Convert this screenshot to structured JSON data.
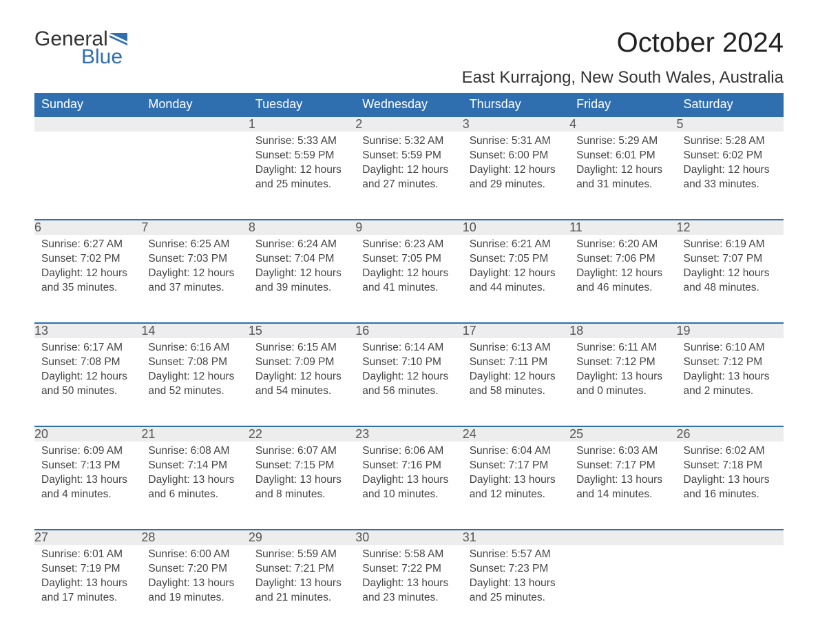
{
  "brand": {
    "part1": "General",
    "part2": "Blue",
    "part1_color": "#333333",
    "part2_color": "#2f6fb0"
  },
  "title": "October 2024",
  "location": "East Kurrajong, New South Wales, Australia",
  "colors": {
    "header_bg": "#2f6fb0",
    "header_text": "#ffffff",
    "daynum_bg": "#ededed",
    "row_border": "#2f6fb0",
    "body_text": "#444444",
    "background": "#ffffff"
  },
  "fonts": {
    "title_size": 40,
    "location_size": 24,
    "dayhead_size": 18,
    "cell_size": 15.5
  },
  "day_headers": [
    "Sunday",
    "Monday",
    "Tuesday",
    "Wednesday",
    "Thursday",
    "Friday",
    "Saturday"
  ],
  "weeks": [
    [
      null,
      null,
      {
        "n": "1",
        "sunrise": "5:33 AM",
        "sunset": "5:59 PM",
        "daylight": "12 hours and 25 minutes."
      },
      {
        "n": "2",
        "sunrise": "5:32 AM",
        "sunset": "5:59 PM",
        "daylight": "12 hours and 27 minutes."
      },
      {
        "n": "3",
        "sunrise": "5:31 AM",
        "sunset": "6:00 PM",
        "daylight": "12 hours and 29 minutes."
      },
      {
        "n": "4",
        "sunrise": "5:29 AM",
        "sunset": "6:01 PM",
        "daylight": "12 hours and 31 minutes."
      },
      {
        "n": "5",
        "sunrise": "5:28 AM",
        "sunset": "6:02 PM",
        "daylight": "12 hours and 33 minutes."
      }
    ],
    [
      {
        "n": "6",
        "sunrise": "6:27 AM",
        "sunset": "7:02 PM",
        "daylight": "12 hours and 35 minutes."
      },
      {
        "n": "7",
        "sunrise": "6:25 AM",
        "sunset": "7:03 PM",
        "daylight": "12 hours and 37 minutes."
      },
      {
        "n": "8",
        "sunrise": "6:24 AM",
        "sunset": "7:04 PM",
        "daylight": "12 hours and 39 minutes."
      },
      {
        "n": "9",
        "sunrise": "6:23 AM",
        "sunset": "7:05 PM",
        "daylight": "12 hours and 41 minutes."
      },
      {
        "n": "10",
        "sunrise": "6:21 AM",
        "sunset": "7:05 PM",
        "daylight": "12 hours and 44 minutes."
      },
      {
        "n": "11",
        "sunrise": "6:20 AM",
        "sunset": "7:06 PM",
        "daylight": "12 hours and 46 minutes."
      },
      {
        "n": "12",
        "sunrise": "6:19 AM",
        "sunset": "7:07 PM",
        "daylight": "12 hours and 48 minutes."
      }
    ],
    [
      {
        "n": "13",
        "sunrise": "6:17 AM",
        "sunset": "7:08 PM",
        "daylight": "12 hours and 50 minutes."
      },
      {
        "n": "14",
        "sunrise": "6:16 AM",
        "sunset": "7:08 PM",
        "daylight": "12 hours and 52 minutes."
      },
      {
        "n": "15",
        "sunrise": "6:15 AM",
        "sunset": "7:09 PM",
        "daylight": "12 hours and 54 minutes."
      },
      {
        "n": "16",
        "sunrise": "6:14 AM",
        "sunset": "7:10 PM",
        "daylight": "12 hours and 56 minutes."
      },
      {
        "n": "17",
        "sunrise": "6:13 AM",
        "sunset": "7:11 PM",
        "daylight": "12 hours and 58 minutes."
      },
      {
        "n": "18",
        "sunrise": "6:11 AM",
        "sunset": "7:12 PM",
        "daylight": "13 hours and 0 minutes."
      },
      {
        "n": "19",
        "sunrise": "6:10 AM",
        "sunset": "7:12 PM",
        "daylight": "13 hours and 2 minutes."
      }
    ],
    [
      {
        "n": "20",
        "sunrise": "6:09 AM",
        "sunset": "7:13 PM",
        "daylight": "13 hours and 4 minutes."
      },
      {
        "n": "21",
        "sunrise": "6:08 AM",
        "sunset": "7:14 PM",
        "daylight": "13 hours and 6 minutes."
      },
      {
        "n": "22",
        "sunrise": "6:07 AM",
        "sunset": "7:15 PM",
        "daylight": "13 hours and 8 minutes."
      },
      {
        "n": "23",
        "sunrise": "6:06 AM",
        "sunset": "7:16 PM",
        "daylight": "13 hours and 10 minutes."
      },
      {
        "n": "24",
        "sunrise": "6:04 AM",
        "sunset": "7:17 PM",
        "daylight": "13 hours and 12 minutes."
      },
      {
        "n": "25",
        "sunrise": "6:03 AM",
        "sunset": "7:17 PM",
        "daylight": "13 hours and 14 minutes."
      },
      {
        "n": "26",
        "sunrise": "6:02 AM",
        "sunset": "7:18 PM",
        "daylight": "13 hours and 16 minutes."
      }
    ],
    [
      {
        "n": "27",
        "sunrise": "6:01 AM",
        "sunset": "7:19 PM",
        "daylight": "13 hours and 17 minutes."
      },
      {
        "n": "28",
        "sunrise": "6:00 AM",
        "sunset": "7:20 PM",
        "daylight": "13 hours and 19 minutes."
      },
      {
        "n": "29",
        "sunrise": "5:59 AM",
        "sunset": "7:21 PM",
        "daylight": "13 hours and 21 minutes."
      },
      {
        "n": "30",
        "sunrise": "5:58 AM",
        "sunset": "7:22 PM",
        "daylight": "13 hours and 23 minutes."
      },
      {
        "n": "31",
        "sunrise": "5:57 AM",
        "sunset": "7:23 PM",
        "daylight": "13 hours and 25 minutes."
      },
      null,
      null
    ]
  ],
  "labels": {
    "sunrise": "Sunrise: ",
    "sunset": "Sunset: ",
    "daylight": "Daylight: "
  }
}
